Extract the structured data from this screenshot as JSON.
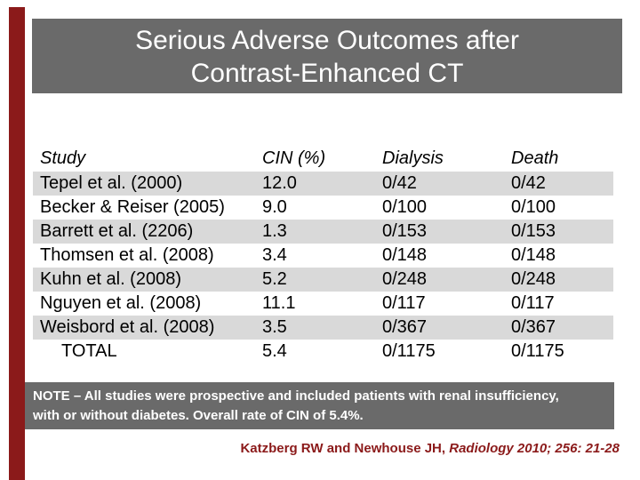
{
  "title": {
    "line1": "Serious Adverse Outcomes after",
    "line2": "Contrast-Enhanced CT"
  },
  "table": {
    "headers": [
      "Study",
      "CIN (%)",
      "Dialysis",
      "Death"
    ],
    "rows": [
      {
        "study": "Tepel et al. (2000)",
        "cin": "12.0",
        "dialysis": "0/42",
        "death": "0/42"
      },
      {
        "study": "Becker & Reiser (2005)",
        "cin": "9.0",
        "dialysis": "0/100",
        "death": "0/100"
      },
      {
        "study": "Barrett et al. (2206)",
        "cin": "1.3",
        "dialysis": "0/153",
        "death": "0/153"
      },
      {
        "study": "Thomsen et al. (2008)",
        "cin": "3.4",
        "dialysis": "0/148",
        "death": "0/148"
      },
      {
        "study": "Kuhn et al. (2008)",
        "cin": "5.2",
        "dialysis": "0/248",
        "death": "0/248"
      },
      {
        "study": "Nguyen et al. (2008)",
        "cin": "11.1",
        "dialysis": "0/117",
        "death": "0/117"
      },
      {
        "study": "Weisbord et al. (2008)",
        "cin": "3.5",
        "dialysis": "0/367",
        "death": "0/367"
      },
      {
        "study": "TOTAL",
        "cin": "5.4",
        "dialysis": "0/1175",
        "death": "0/1175"
      }
    ]
  },
  "note": {
    "line1": "NOTE – All studies were prospective and included patients with renal insufficiency,",
    "line2": "with or without diabetes. Overall rate of CIN of 5.4%."
  },
  "citation": {
    "authors": "Katzberg RW and Newhouse JH,",
    "source": "Radiology 2010; 256: 21-28"
  },
  "colors": {
    "accent_maroon": "#8B1A1A",
    "box_gray": "#6A6A6A",
    "row_band_gray": "#D9D9D9"
  }
}
